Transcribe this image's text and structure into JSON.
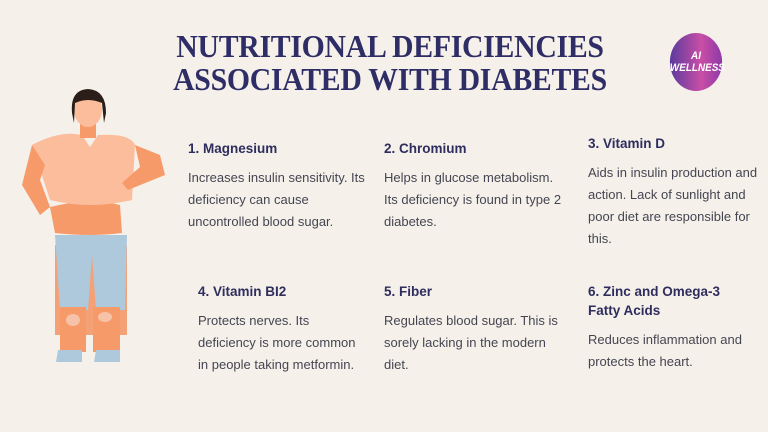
{
  "title": {
    "line1": "NUTRITIONAL DEFICIENCIES",
    "line2": "ASSOCIATED WITH DIABETES"
  },
  "badge": {
    "line1": "AI",
    "line2": "WELLNESS"
  },
  "colors": {
    "heading": "#2e2d66",
    "body": "#454552",
    "background": "#f5f1ea",
    "badge_gradient": [
      "#5b3a9e",
      "#c94ea6"
    ]
  },
  "illustration": "woman-injecting-insulin",
  "items": [
    {
      "heading": "1. Magnesium",
      "body": "Increases insulin sensitivity. Its deficiency can cause uncontrolled blood sugar."
    },
    {
      "heading": "2. Chromium",
      "body": "Helps in glucose metabolism. Its deficiency is found in type 2 diabetes."
    },
    {
      "heading": "3. Vitamin D",
      "body": "Aids in insulin production and action. Lack of sunlight and poor diet are responsible for this."
    },
    {
      "heading": "4. Vitamin BI2",
      "body": "Protects nerves. Its deficiency is more common in people taking metformin."
    },
    {
      "heading": "5. Fiber",
      "body": "Regulates blood sugar. This is sorely lacking in the modern diet."
    },
    {
      "heading": "6. Zinc and Omega-3 Fatty Acids",
      "body": "Reduces inflammation and protects the heart."
    }
  ]
}
